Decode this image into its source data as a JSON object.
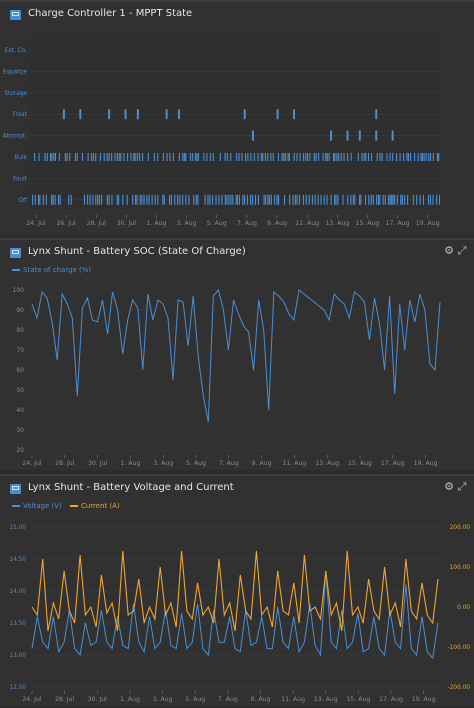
{
  "colors": {
    "blue": "#4a8fd4",
    "orange": "#f0a431",
    "grid": "#3e3e3e",
    "axis": "#8a8a8a",
    "background": "#313131"
  },
  "panels": [
    {
      "title": "Charge Controller 1 - MPPT State",
      "icons": [
        "chart-panel-icon"
      ]
    },
    {
      "title": "Lynx Shunt - Battery SOC (State Of Charge)",
      "icons": [
        "chart-panel-icon",
        "gear-icon",
        "expand-icon"
      ],
      "legend": [
        "State of charge (%)"
      ]
    },
    {
      "title": "Lynx Shunt - Battery Voltage and Current",
      "icons": [
        "chart-panel-icon",
        "gear-icon",
        "expand-icon"
      ],
      "legend": [
        "Voltage (V)",
        "Current (A)"
      ]
    }
  ],
  "x_ticks": [
    "24. Jul",
    "26. Jul",
    "28. Jul",
    "30. Jul",
    "1. Aug",
    "3. Aug",
    "5. Aug",
    "7. Aug",
    "9. Aug",
    "11. Aug",
    "13. Aug",
    "15. Aug",
    "17. Aug",
    "19. Aug"
  ],
  "x_ticks_even": [
    "24. Jul",
    "28. Jul",
    "30. Jul",
    "1. Aug",
    "3. Aug",
    "5. Aug",
    "7. Aug",
    "9. Aug",
    "11. Aug",
    "13. Aug",
    "15. Aug",
    "17. Aug",
    "19. Aug"
  ],
  "chart_data": [
    {
      "type": "scatter",
      "title": "Charge Controller 1 - MPPT State",
      "categories": [
        "Ext. Co.",
        "Equalize",
        "Storage",
        "Float",
        "Absorpt.",
        "Bulk",
        "Fault",
        "Off"
      ],
      "float_marks": [
        0.08,
        0.12,
        0.19,
        0.23,
        0.26,
        0.33,
        0.36,
        0.52,
        0.6,
        0.64,
        0.84
      ],
      "absorpt_marks": [
        0.54,
        0.73,
        0.77,
        0.8,
        0.84,
        0.88
      ],
      "bulk_density": "dense",
      "off_density": "dense",
      "x_range": [
        "24. Jul",
        "20. Aug"
      ]
    },
    {
      "type": "line",
      "title": "Lynx Shunt - Battery SOC (State Of Charge)",
      "series": [
        {
          "name": "State of charge (%)",
          "values": [
            93,
            86,
            99,
            96,
            84,
            65,
            98,
            93,
            86,
            47,
            91,
            96,
            85,
            84,
            95,
            78,
            99,
            90,
            68,
            85,
            95,
            91,
            60,
            98,
            85,
            95,
            93,
            86,
            55,
            95,
            94,
            72,
            97,
            67,
            47,
            34,
            97,
            100,
            90,
            70,
            95,
            88,
            82,
            79,
            60,
            95,
            80,
            40,
            99,
            97,
            94,
            88,
            85,
            100,
            98,
            96,
            94,
            92,
            90,
            85,
            98,
            95,
            93,
            86,
            99,
            97,
            94,
            75,
            96,
            83,
            60,
            97,
            48,
            93,
            70,
            95,
            84,
            98,
            90,
            63,
            60,
            94
          ]
        }
      ],
      "ylim": [
        20,
        100
      ],
      "yticks": [
        20,
        30,
        40,
        50,
        60,
        70,
        80,
        90,
        100
      ],
      "x_range": [
        "24. Jul",
        "20. Aug"
      ]
    },
    {
      "type": "line",
      "title": "Lynx Shunt - Battery Voltage and Current",
      "series": [
        {
          "name": "Voltage (V)",
          "axis": "left",
          "values": [
            13.1,
            13.6,
            13.2,
            13.1,
            13.6,
            13.05,
            13.2,
            13.7,
            13.1,
            13.0,
            13.5,
            13.15,
            13.2,
            13.7,
            13.2,
            13.1,
            13.6,
            13.15,
            13.1,
            13.8,
            13.2,
            13.05,
            13.6,
            13.1,
            13.2,
            13.7,
            13.15,
            13.1,
            13.65,
            13.1,
            13.2,
            13.8,
            13.1,
            13.0,
            13.7,
            13.2,
            13.2,
            13.6,
            13.1,
            13.05,
            13.7,
            13.15,
            13.2,
            13.6,
            13.1,
            13.1,
            13.75,
            13.2,
            13.1,
            13.6,
            13.05,
            13.2,
            13.8,
            13.15,
            13.0,
            14.3,
            13.2,
            13.1,
            13.7,
            13.1,
            13.2,
            13.65,
            13.05,
            13.1,
            13.6,
            13.1,
            13.0,
            13.7,
            13.2,
            13.1,
            14.1,
            13.1,
            13.0,
            13.6,
            13.05,
            12.95,
            13.5
          ]
        },
        {
          "name": "Current (A)",
          "axis": "right",
          "values": [
            0,
            -20,
            120,
            -60,
            10,
            -30,
            90,
            -10,
            -40,
            130,
            -20,
            0,
            -50,
            80,
            -15,
            10,
            -60,
            140,
            -20,
            -10,
            70,
            -40,
            0,
            -30,
            100,
            -20,
            10,
            -50,
            140,
            -10,
            -30,
            60,
            -20,
            0,
            -40,
            120,
            -20,
            10,
            -60,
            80,
            -10,
            -30,
            140,
            -20,
            0,
            -50,
            90,
            -10,
            -20,
            60,
            -40,
            130,
            -10,
            0,
            -30,
            90,
            -20,
            10,
            -60,
            140,
            -20,
            0,
            -40,
            70,
            -10,
            -30,
            100,
            -20,
            10,
            -50,
            120,
            -10,
            -30,
            60,
            -20,
            -40,
            70
          ]
        }
      ],
      "ylim_left": [
        12.5,
        15.0
      ],
      "ylim_right": [
        -200,
        200
      ],
      "yticks_left": [
        "12.50",
        "13.00",
        "13.50",
        "14.00",
        "14.50",
        "15.00"
      ],
      "yticks_right": [
        "-200.00",
        "-100.00",
        "0.00",
        "100.00",
        "200.00"
      ],
      "x_range": [
        "24. Jul",
        "20. Aug"
      ]
    }
  ]
}
